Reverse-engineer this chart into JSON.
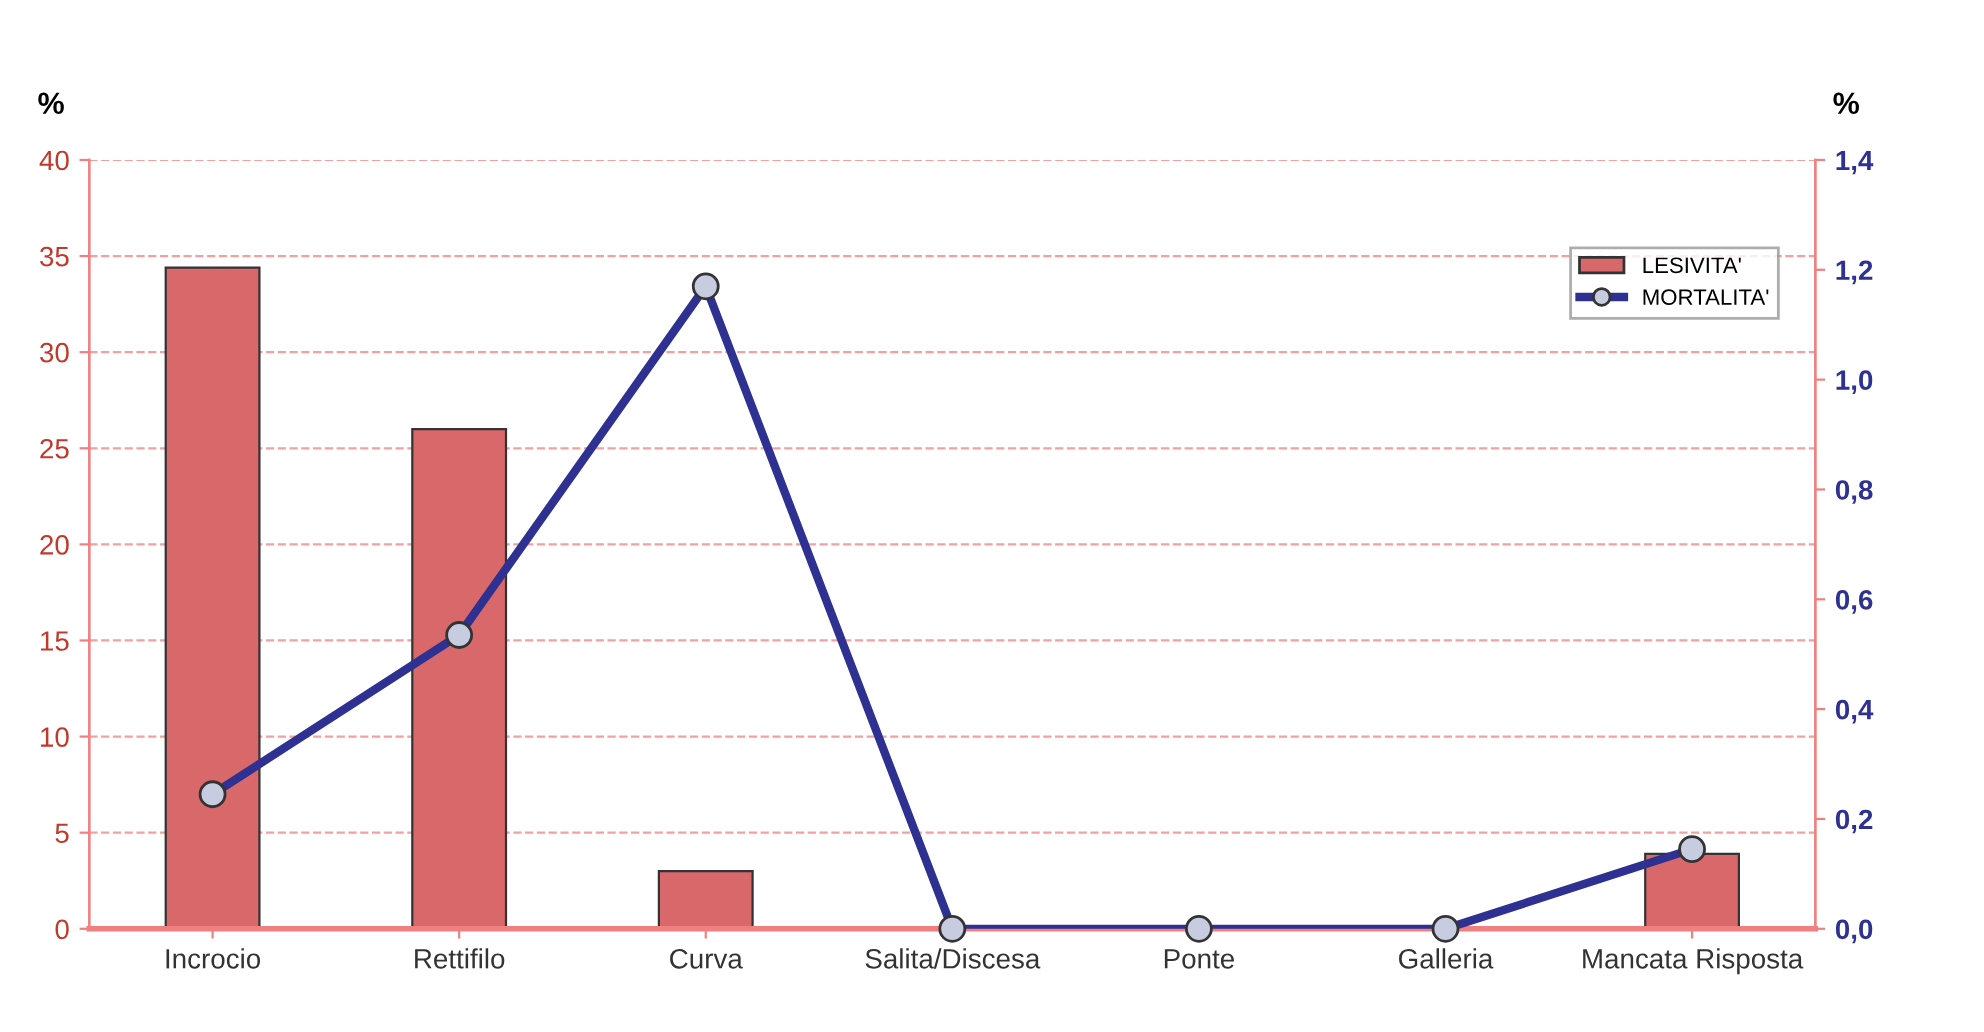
{
  "chart_data": {
    "type": "bar",
    "categories": [
      "Incrocio",
      "Rettifilo",
      "Curva",
      "Salita/Discesa",
      "Ponte",
      "Galleria",
      "Mancata Risposta"
    ],
    "series": [
      {
        "name": "LESIVITA'",
        "color": "#d9686b",
        "values": [
          34.4,
          26.0,
          3.0,
          null,
          null,
          null,
          3.9
        ]
      },
      {
        "name": "MORTALITA'",
        "type": "line",
        "axis": "y2",
        "color": "#2e3192",
        "marker": "circle",
        "values": [
          0.245,
          0.535,
          1.17,
          0.0,
          0.0,
          0.0,
          0.145
        ]
      }
    ],
    "ylabel": "%",
    "y2label": "%",
    "ylim": [
      0,
      40
    ],
    "yticks": [
      0,
      5,
      10,
      15,
      20,
      25,
      30,
      35,
      40
    ],
    "y2lim": [
      0,
      1.4
    ],
    "y2ticks": [
      {
        "value": 0,
        "label": "0,0"
      },
      {
        "value": 0.2,
        "label": "0,2"
      },
      {
        "value": 0.4,
        "label": "0,4"
      },
      {
        "value": 0.6,
        "label": "0,6"
      },
      {
        "value": 0.8,
        "label": "0,8"
      },
      {
        "value": 1.0,
        "label": "1,0"
      },
      {
        "value": 1.2,
        "label": "1,2"
      },
      {
        "value": 1.4,
        "label": "1,4"
      }
    ],
    "grid": "y",
    "legend": "top right",
    "line_style": "solid"
  }
}
